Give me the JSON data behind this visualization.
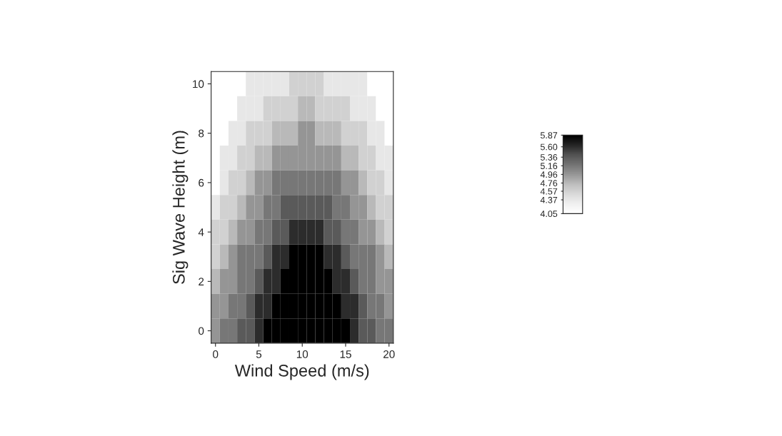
{
  "chart_data": {
    "type": "heatmap",
    "xlabel": "Wind Speed (m/s)",
    "ylabel": "Sig Wave Height (m)",
    "categories": [
      "0",
      null,
      null,
      null,
      null,
      "5",
      null,
      null,
      null,
      null,
      "10",
      null,
      null,
      null,
      null,
      "15",
      null,
      null,
      null,
      null,
      "20"
    ],
    "y_categories": [
      "10",
      null,
      "8",
      null,
      "6",
      null,
      "4",
      null,
      "2",
      null,
      "0"
    ],
    "clim": [
      4.05,
      5.87
    ],
    "cticks": [
      5.87,
      {
        "value": 5.6,
        "label": "5.60"
      },
      5.36,
      5.16,
      4.96,
      4.76,
      4.57,
      4.37,
      4.05
    ],
    "cells": [
      [
        4.05,
        4.05,
        4.05,
        4.05,
        4.37,
        4.37,
        4.37,
        4.37,
        4.37,
        4.57,
        4.57,
        4.57,
        4.57,
        4.37,
        4.37,
        4.37,
        4.37,
        4.37,
        4.05,
        4.05,
        4.05
      ],
      [
        4.05,
        4.05,
        4.05,
        4.37,
        4.37,
        4.37,
        4.57,
        4.57,
        4.57,
        4.57,
        4.76,
        4.76,
        4.57,
        4.57,
        4.57,
        4.57,
        4.37,
        4.37,
        4.37,
        4.05,
        4.05
      ],
      [
        4.05,
        4.05,
        4.37,
        4.37,
        4.57,
        4.57,
        4.57,
        4.76,
        4.76,
        4.76,
        4.96,
        4.96,
        4.76,
        4.76,
        4.76,
        4.57,
        4.57,
        4.57,
        4.37,
        4.37,
        4.05
      ],
      [
        4.05,
        4.37,
        4.37,
        4.57,
        4.57,
        4.76,
        4.76,
        4.96,
        4.96,
        4.96,
        4.96,
        4.96,
        4.96,
        4.96,
        4.96,
        4.76,
        4.76,
        4.57,
        4.57,
        4.37,
        4.37
      ],
      [
        4.05,
        4.37,
        4.57,
        4.57,
        4.76,
        4.96,
        4.96,
        5.16,
        5.16,
        5.16,
        5.16,
        5.16,
        5.16,
        5.16,
        5.16,
        4.96,
        4.96,
        4.76,
        4.57,
        4.57,
        4.37
      ],
      [
        4.37,
        4.57,
        4.57,
        4.76,
        4.96,
        4.96,
        5.16,
        5.16,
        5.36,
        5.36,
        5.36,
        5.36,
        5.36,
        5.36,
        5.16,
        5.16,
        4.96,
        4.96,
        4.76,
        4.57,
        4.57
      ],
      [
        4.57,
        4.57,
        4.76,
        4.96,
        4.96,
        5.16,
        5.16,
        5.36,
        5.36,
        5.6,
        5.6,
        5.6,
        5.6,
        5.36,
        5.36,
        5.16,
        5.16,
        4.96,
        4.96,
        4.76,
        4.57
      ],
      [
        4.57,
        4.76,
        4.96,
        5.16,
        5.16,
        5.16,
        5.36,
        5.6,
        5.6,
        5.87,
        5.87,
        5.87,
        5.87,
        5.6,
        5.6,
        5.36,
        5.16,
        5.16,
        5.16,
        4.96,
        4.76
      ],
      [
        4.76,
        4.96,
        4.96,
        5.16,
        5.16,
        5.36,
        5.6,
        5.6,
        5.87,
        5.87,
        5.87,
        5.87,
        5.87,
        5.87,
        5.6,
        5.6,
        5.36,
        5.16,
        5.16,
        4.96,
        4.96
      ],
      [
        4.96,
        4.96,
        5.16,
        5.16,
        5.36,
        5.6,
        5.6,
        5.87,
        5.87,
        5.87,
        5.87,
        5.87,
        5.87,
        5.87,
        5.87,
        5.6,
        5.6,
        5.36,
        5.16,
        5.16,
        4.96
      ],
      [
        4.96,
        5.16,
        5.16,
        5.36,
        5.36,
        5.6,
        5.87,
        5.87,
        5.87,
        5.87,
        5.87,
        5.87,
        5.87,
        5.87,
        5.87,
        5.87,
        5.6,
        5.36,
        5.36,
        5.16,
        5.16
      ]
    ]
  }
}
